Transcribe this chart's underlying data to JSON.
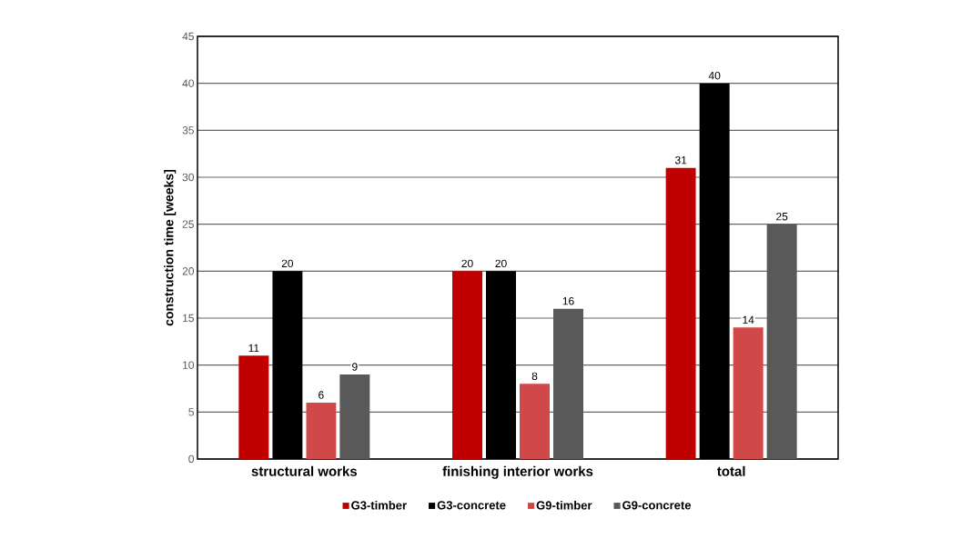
{
  "chart_data": {
    "type": "bar",
    "ylabel": "construction time [weeks]",
    "categories": [
      "structural works",
      "finishing interior works",
      "total"
    ],
    "series": [
      {
        "name": "G3-timber",
        "color": "#c00000",
        "values": [
          11,
          20,
          31
        ]
      },
      {
        "name": "G3-concrete",
        "color": "#000000",
        "values": [
          20,
          20,
          40
        ]
      },
      {
        "name": "G9-timber",
        "color": "#d04848",
        "values": [
          6,
          8,
          14
        ]
      },
      {
        "name": "G9-concrete",
        "color": "#595959",
        "values": [
          9,
          16,
          25
        ]
      }
    ],
    "ylim": [
      0,
      45
    ],
    "yticks": [
      0,
      5,
      10,
      15,
      20,
      25,
      30,
      35,
      40,
      45
    ],
    "grid": "y",
    "legend": "bottom",
    "data_labels": true
  }
}
